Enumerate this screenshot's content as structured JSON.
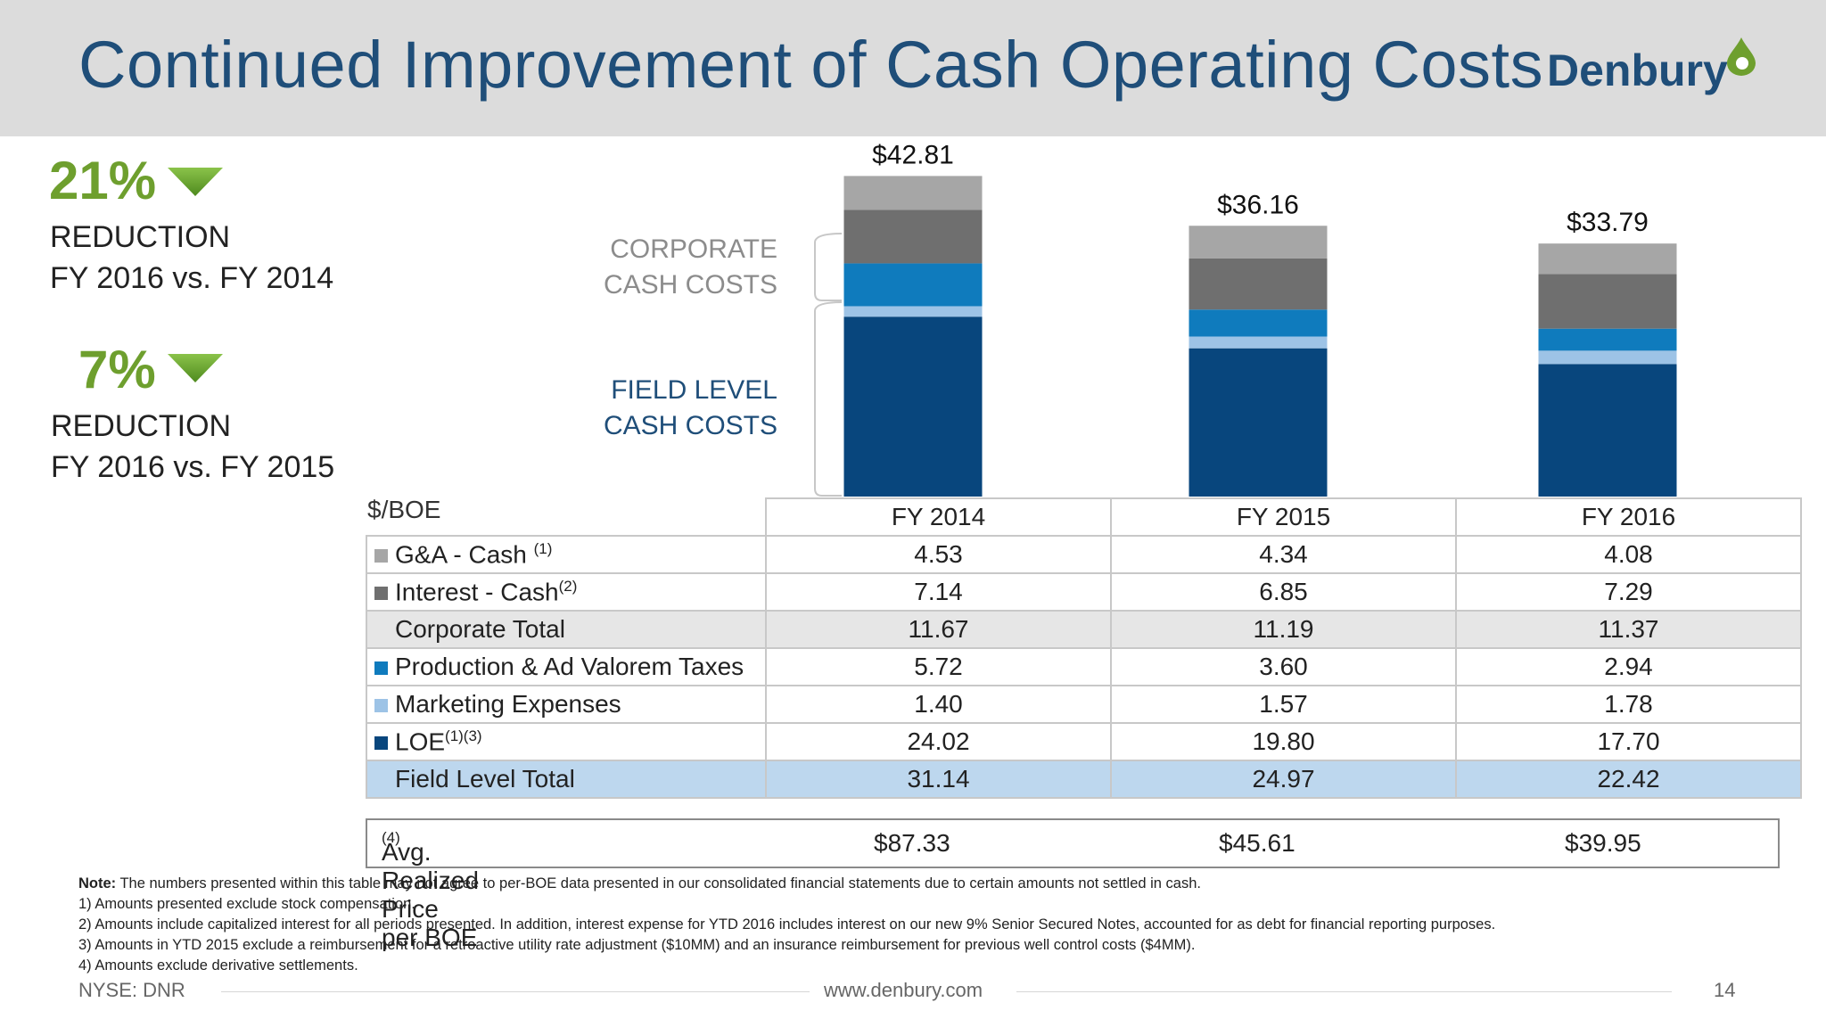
{
  "title": "Continued Improvement of Cash Operating Costs",
  "logo": "Denbury",
  "kpis": [
    {
      "pct": "21%",
      "line1": "REDUCTION",
      "line2": "FY 2016 vs. FY 2014"
    },
    {
      "pct": "7%",
      "line1": "REDUCTION",
      "line2": "FY 2016 vs. FY 2015"
    }
  ],
  "brace_labels": {
    "corporate": [
      "CORPORATE",
      "CASH COSTS"
    ],
    "field": [
      "FIELD LEVEL",
      "CASH COSTS"
    ]
  },
  "colors": {
    "ga": "#a6a6a6",
    "interest": "#6f6f6f",
    "production": "#0f7bbd",
    "marketing": "#9dc3e6",
    "loe": "#08467d",
    "accent_green": "#6e9f2e",
    "title_blue": "#1f4e79"
  },
  "chart_data": {
    "type": "bar",
    "stacked": true,
    "categories": [
      "FY 2014",
      "FY 2015",
      "FY 2016"
    ],
    "series": [
      {
        "name": "LOE",
        "color": "#08467d",
        "values": [
          24.02,
          19.8,
          17.7
        ]
      },
      {
        "name": "Marketing Expenses",
        "color": "#9dc3e6",
        "values": [
          1.4,
          1.57,
          1.78
        ]
      },
      {
        "name": "Production & Ad Valorem Taxes",
        "color": "#0f7bbd",
        "values": [
          5.72,
          3.6,
          2.94
        ]
      },
      {
        "name": "Interest - Cash",
        "color": "#6f6f6f",
        "values": [
          7.14,
          6.85,
          7.29
        ]
      },
      {
        "name": "G&A - Cash",
        "color": "#a6a6a6",
        "values": [
          4.53,
          4.34,
          4.08
        ]
      }
    ],
    "totals": [
      "$42.81",
      "$36.16",
      "$33.79"
    ],
    "ylim": [
      0,
      45
    ]
  },
  "table": {
    "unit_label": "$/BOE",
    "headers": [
      "FY 2014",
      "FY 2015",
      "FY 2016"
    ],
    "rows": [
      {
        "label": "G&A - Cash",
        "sup": "(1)",
        "swatch": "#a6a6a6",
        "values": [
          "4.53",
          "4.34",
          "4.08"
        ]
      },
      {
        "label": "Interest - Cash",
        "sup": "(2)",
        "swatch": "#6f6f6f",
        "values": [
          "7.14",
          "6.85",
          "7.29"
        ]
      },
      {
        "label": "Corporate Total",
        "values": [
          "11.67",
          "11.19",
          "11.37"
        ]
      },
      {
        "label": "Production & Ad Valorem Taxes",
        "swatch": "#0f7bbd",
        "values": [
          "5.72",
          "3.60",
          "2.94"
        ]
      },
      {
        "label": "Marketing Expenses",
        "swatch": "#9dc3e6",
        "values": [
          "1.40",
          "1.57",
          "1.78"
        ]
      },
      {
        "label": "LOE",
        "sup": "(1)(3)",
        "swatch": "#08467d",
        "values": [
          "24.02",
          "19.80",
          "17.70"
        ]
      },
      {
        "label": "Field Level Total",
        "values": [
          "31.14",
          "24.97",
          "22.42"
        ]
      }
    ],
    "avg_label": "Avg. Realized Price per BOE",
    "avg_sup": "(4)",
    "avg_values": [
      "$87.33",
      "$45.61",
      "$39.95"
    ]
  },
  "notes": {
    "note_label": "Note:",
    "note_text": " The numbers presented within this table may not agree to per-BOE data presented in our consolidated financial statements due to certain amounts not settled in cash.",
    "lines": [
      "1) Amounts presented exclude stock compensation.",
      "2) Amounts include capitalized interest for all periods presented. In addition, interest expense for YTD 2016 includes interest on our new 9% Senior Secured Notes, accounted for as debt for financial reporting purposes.",
      "3) Amounts in YTD 2015 exclude a reimbursement for a retroactive utility rate adjustment ($10MM) and an insurance reimbursement for previous well control costs ($4MM).",
      "4) Amounts exclude derivative settlements."
    ]
  },
  "footer": {
    "ticker": "NYSE: DNR",
    "url": "www.denbury.com",
    "page": "14"
  }
}
